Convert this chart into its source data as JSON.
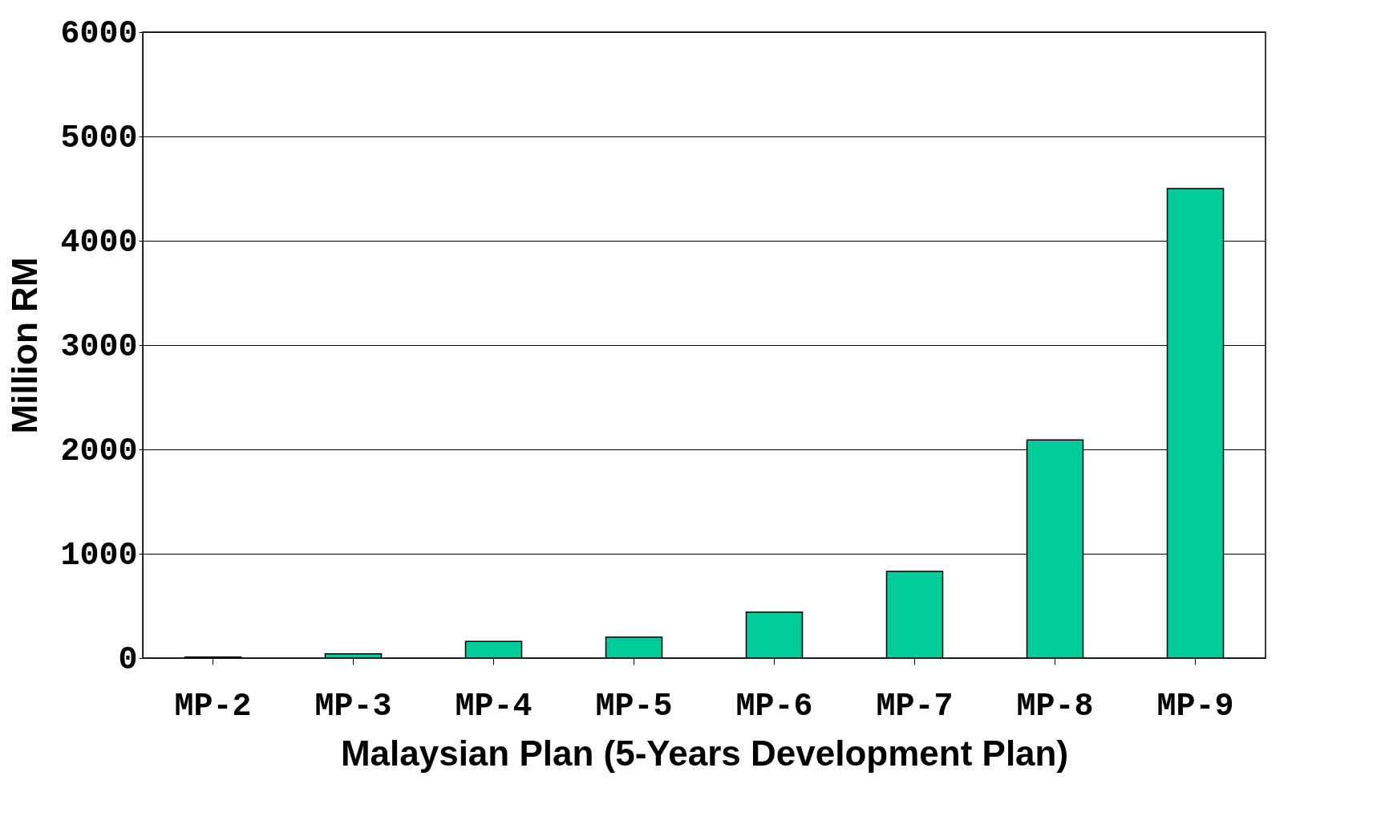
{
  "chart_data": {
    "type": "bar",
    "xlabel": "Malaysian Plan (5-Years Development Plan)",
    "ylabel": "Million RM",
    "categories": [
      "MP-2",
      "MP-3",
      "MP-4",
      "MP-5",
      "MP-6",
      "MP-7",
      "MP-8",
      "MP-9"
    ],
    "values": [
      10,
      40,
      160,
      200,
      440,
      830,
      2090,
      4500
    ],
    "color": "#00cc99",
    "ylim": [
      0,
      6000
    ],
    "yticks": [
      0,
      1000,
      2000,
      3000,
      4000,
      5000,
      6000
    ],
    "grid": "y"
  }
}
